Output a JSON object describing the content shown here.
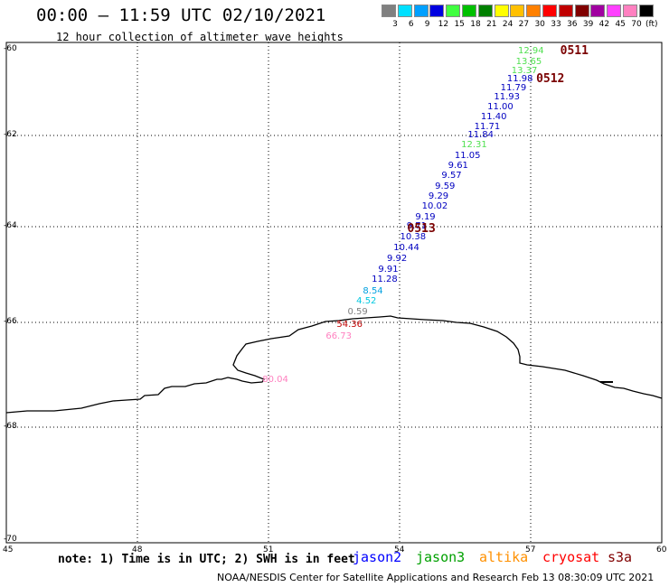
{
  "header": {
    "title": "00:00 – 11:59 UTC 02/10/2021",
    "subtitle": "12 hour collection of altimeter wave heights"
  },
  "legend": {
    "unit": "(ft)",
    "bins": [
      {
        "label": "3",
        "color": "#808080"
      },
      {
        "label": "6",
        "color": "#00e0ff"
      },
      {
        "label": "9",
        "color": "#00a0ff"
      },
      {
        "label": "12",
        "color": "#0000e0"
      },
      {
        "label": "15",
        "color": "#40ff40"
      },
      {
        "label": "18",
        "color": "#00c000"
      },
      {
        "label": "21",
        "color": "#008000"
      },
      {
        "label": "24",
        "color": "#ffff00"
      },
      {
        "label": "27",
        "color": "#ffc000"
      },
      {
        "label": "30",
        "color": "#ff8000"
      },
      {
        "label": "33",
        "color": "#ff0000"
      },
      {
        "label": "36",
        "color": "#c00000"
      },
      {
        "label": "39",
        "color": "#800000"
      },
      {
        "label": "42",
        "color": "#a000a0"
      },
      {
        "label": "45",
        "color": "#ff40ff"
      },
      {
        "label": "70",
        "color": "#ff80c0"
      },
      {
        "label": "",
        "color": "#000000"
      }
    ]
  },
  "axes": {
    "lon_labels": [
      "45",
      "48",
      "51",
      "54",
      "57",
      "60"
    ],
    "lat_labels": [
      "-60",
      "-62",
      "-64",
      "-66",
      "-68",
      "-70"
    ]
  },
  "passes": [
    {
      "label": "0511",
      "lon": 57.8,
      "lat": -60.05
    },
    {
      "label": "0512",
      "lon": 57.25,
      "lat": -60.7
    },
    {
      "label": "0513",
      "lon": 54.3,
      "lat": -64.05
    }
  ],
  "heights": [
    {
      "value": "12.94",
      "lon": 57.0,
      "lat": -60.05,
      "color": "#50e050"
    },
    {
      "value": "13.65",
      "lon": 56.95,
      "lat": -60.3,
      "color": "#50e050"
    },
    {
      "value": "13.37",
      "lon": 56.85,
      "lat": -60.5,
      "color": "#50e050"
    },
    {
      "value": "11.98",
      "lon": 56.75,
      "lat": -60.7,
      "color": "#0000c0"
    },
    {
      "value": "11.79",
      "lon": 56.6,
      "lat": -60.9,
      "color": "#0000c0"
    },
    {
      "value": "11.93",
      "lon": 56.45,
      "lat": -61.12,
      "color": "#0000c0"
    },
    {
      "value": "11.00",
      "lon": 56.3,
      "lat": -61.35,
      "color": "#0000c0"
    },
    {
      "value": "11.40",
      "lon": 56.15,
      "lat": -61.57,
      "color": "#0000c0"
    },
    {
      "value": "11.71",
      "lon": 56.0,
      "lat": -61.8,
      "color": "#0000c0"
    },
    {
      "value": "11.84",
      "lon": 55.85,
      "lat": -62.0,
      "color": "#0000c0"
    },
    {
      "value": "12.31",
      "lon": 55.7,
      "lat": -62.22,
      "color": "#50e050"
    },
    {
      "value": "11.05",
      "lon": 55.55,
      "lat": -62.45,
      "color": "#0000c0"
    },
    {
      "value": "9.61",
      "lon": 55.4,
      "lat": -62.67,
      "color": "#0000c0"
    },
    {
      "value": "9.57",
      "lon": 55.25,
      "lat": -62.9,
      "color": "#0000c0"
    },
    {
      "value": "9.59",
      "lon": 55.1,
      "lat": -63.12,
      "color": "#0000c0"
    },
    {
      "value": "9.29",
      "lon": 54.95,
      "lat": -63.35,
      "color": "#0000c0"
    },
    {
      "value": "10.02",
      "lon": 54.8,
      "lat": -63.57,
      "color": "#0000c0"
    },
    {
      "value": "9.19",
      "lon": 54.65,
      "lat": -63.8,
      "color": "#0000c0"
    },
    {
      "value": "9.71",
      "lon": 54.45,
      "lat": -64.0,
      "color": "#0000c0"
    },
    {
      "value": "10.38",
      "lon": 54.3,
      "lat": -64.22,
      "color": "#0000c0"
    },
    {
      "value": "10.44",
      "lon": 54.15,
      "lat": -64.45,
      "color": "#0000c0"
    },
    {
      "value": "9.92",
      "lon": 54.0,
      "lat": -64.68,
      "color": "#0000c0"
    },
    {
      "value": "9.91",
      "lon": 53.8,
      "lat": -64.9,
      "color": "#0000c0"
    },
    {
      "value": "11.28",
      "lon": 53.65,
      "lat": -65.12,
      "color": "#0000c0"
    },
    {
      "value": "8.54",
      "lon": 53.45,
      "lat": -65.35,
      "color": "#00a0e0"
    },
    {
      "value": "4.52",
      "lon": 53.3,
      "lat": -65.57,
      "color": "#00c8e0"
    },
    {
      "value": "0.59",
      "lon": 53.1,
      "lat": -65.8,
      "color": "#808080"
    },
    {
      "value": "54.36",
      "lon": 52.85,
      "lat": -66.05,
      "color": "#c00000"
    },
    {
      "value": "66.73",
      "lon": 52.6,
      "lat": -66.28,
      "color": "#ff80c0"
    },
    {
      "value": "80.04",
      "lon": 51.15,
      "lat": -67.1,
      "color": "#ff80c0"
    }
  ],
  "footer": {
    "note": "note: 1) Time is in UTC; 2) SWH is in feet",
    "satellites": [
      {
        "name": "jason2",
        "color": "#0000ff"
      },
      {
        "name": "jason3",
        "color": "#00a000"
      },
      {
        "name": "altika",
        "color": "#ff9000"
      },
      {
        "name": "cryosat",
        "color": "#ff0000"
      },
      {
        "name": "s3a",
        "color": "#800000"
      }
    ],
    "credit": "NOAA/NESDIS Center for Satellite Applications and Research   Feb 13 08:30:09 UTC 2021"
  }
}
